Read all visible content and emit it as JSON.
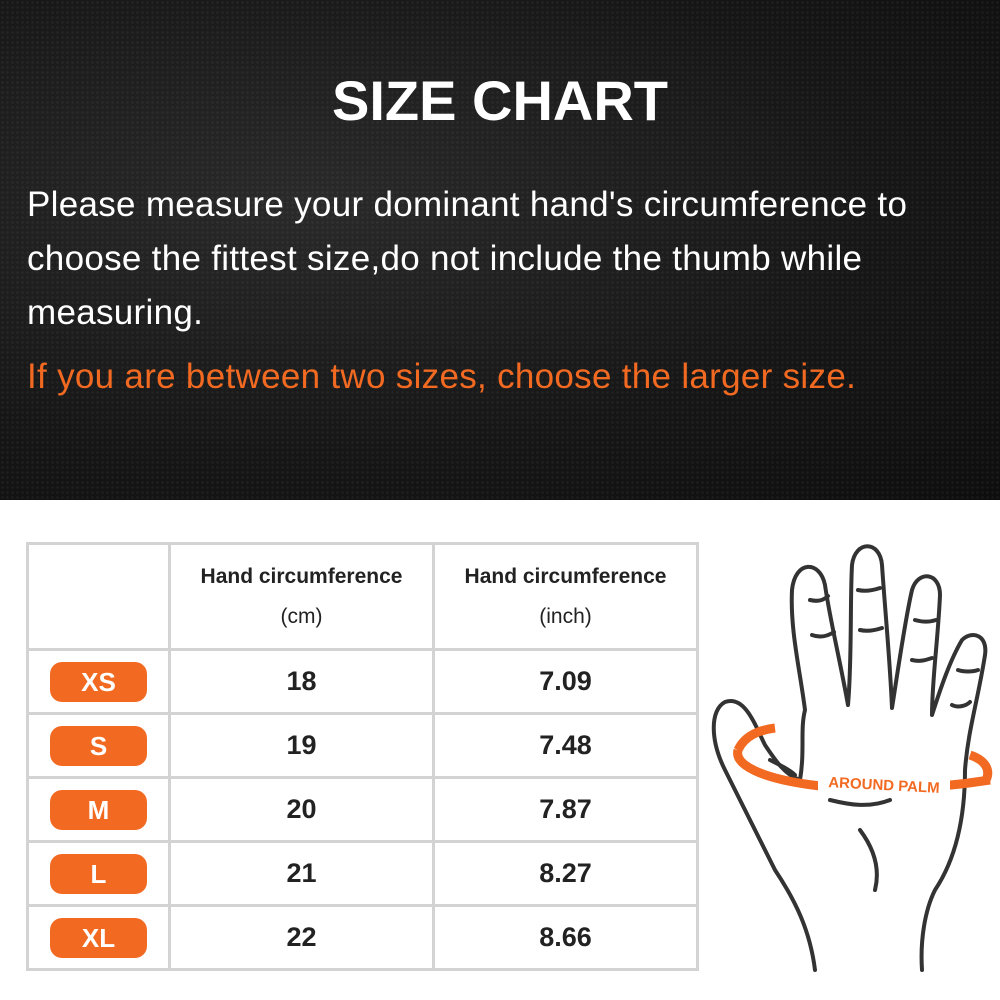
{
  "header": {
    "title": "SIZE CHART",
    "description": "Please measure your dominant hand's circumference to choose the fittest size,do not include the thumb while measuring.",
    "note": "If you are between two sizes, choose the larger size."
  },
  "table": {
    "columns": [
      {
        "label": "Hand circumference",
        "unit": "(cm)"
      },
      {
        "label": "Hand circumference",
        "unit": "(inch)"
      }
    ],
    "rows": [
      {
        "size": "XS",
        "cm": "18",
        "inch": "7.09"
      },
      {
        "size": "S",
        "cm": "19",
        "inch": "7.48"
      },
      {
        "size": "M",
        "cm": "20",
        "inch": "7.87"
      },
      {
        "size": "L",
        "cm": "21",
        "inch": "8.27"
      },
      {
        "size": "XL",
        "cm": "22",
        "inch": "8.66"
      }
    ]
  },
  "illustration": {
    "label": "AROUND PALM",
    "icon": "hand-icon"
  },
  "colors": {
    "accent": "#f26a21",
    "background_dark": "#161616",
    "border": "#d3d3d3"
  }
}
